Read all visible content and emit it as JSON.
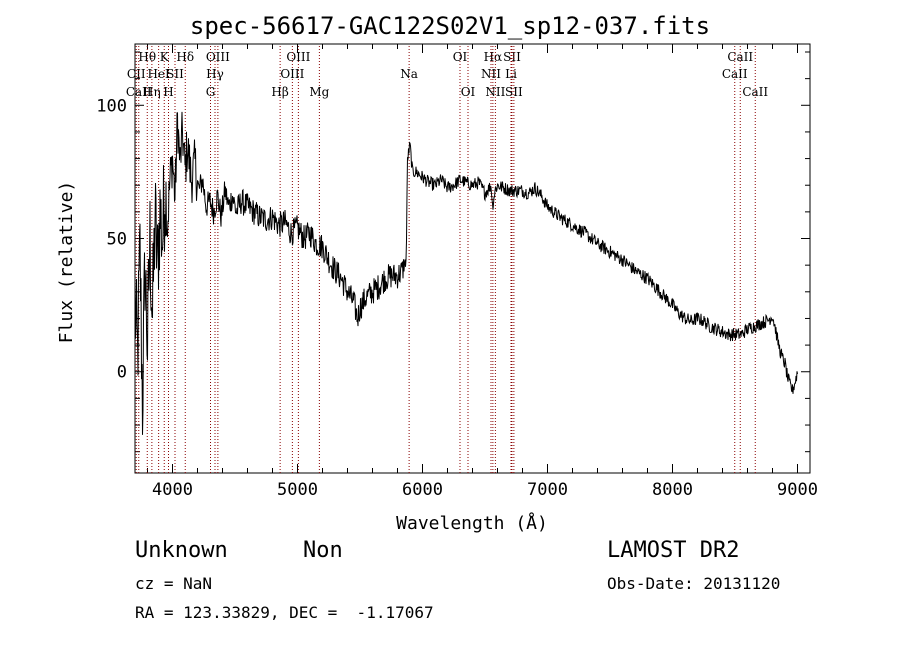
{
  "chart_data": {
    "type": "line",
    "title": "spec-56617-GAC122S02V1_sp12-037.fits",
    "xlabel": "Wavelength (Å)",
    "ylabel": "Flux (relative)",
    "xlim": [
      3700,
      9100
    ],
    "ylim": [
      -38,
      123
    ],
    "xticks": [
      4000,
      5000,
      6000,
      7000,
      8000,
      9000
    ],
    "yticks": [
      0,
      50,
      100
    ],
    "grid": false,
    "line_color": "#000000",
    "marker_color": "#8b0000",
    "series": [
      {
        "x": [
          3700,
          3720,
          3740,
          3760,
          3780,
          3800,
          3820,
          3840,
          3860,
          3880,
          3900,
          3920,
          3940,
          3960,
          3980,
          4000,
          4020,
          4040,
          4060,
          4080,
          4100,
          4120,
          4150,
          4180,
          4210,
          4240,
          4270,
          4300,
          4330,
          4360,
          4390,
          4420,
          4450,
          4480,
          4510,
          4550,
          4600,
          4650,
          4700,
          4750,
          4800,
          4850,
          4900,
          4950,
          5000,
          5050,
          5100,
          5150,
          5200,
          5250,
          5300,
          5350,
          5400,
          5450,
          5480,
          5500,
          5550,
          5600,
          5650,
          5700,
          5750,
          5800,
          5840,
          5870,
          5880,
          5900,
          5920,
          5950,
          6000,
          6050,
          6100,
          6150,
          6200,
          6250,
          6300,
          6350,
          6400,
          6450,
          6500,
          6550,
          6560,
          6580,
          6600,
          6650,
          6700,
          6750,
          6800,
          6850,
          6900,
          6950,
          7000,
          7100,
          7200,
          7300,
          7400,
          7500,
          7600,
          7700,
          7800,
          7900,
          8000,
          8050,
          8100,
          8150,
          8200,
          8250,
          8300,
          8350,
          8400,
          8450,
          8500,
          8550,
          8600,
          8650,
          8700,
          8750,
          8780,
          8800,
          8820,
          8840,
          8860,
          8880,
          8900,
          8920,
          8940,
          8960,
          8980,
          9000
        ],
        "y": [
          25,
          5,
          45,
          -12,
          40,
          10,
          50,
          20,
          58,
          40,
          60,
          50,
          70,
          55,
          72,
          80,
          65,
          95,
          78,
          90,
          76,
          85,
          72,
          78,
          68,
          72,
          62,
          64,
          60,
          66,
          58,
          68,
          62,
          66,
          60,
          64,
          62,
          60,
          58,
          57,
          58,
          55,
          56,
          52,
          54,
          50,
          52,
          48,
          47,
          42,
          38,
          35,
          30,
          26,
          20,
          24,
          28,
          30,
          32,
          35,
          36,
          36,
          38,
          42,
          80,
          85,
          75,
          75,
          73,
          71,
          70,
          72,
          69,
          70,
          72,
          71,
          70,
          71,
          67,
          70,
          62,
          68,
          70,
          69,
          68,
          68,
          68,
          67,
          69,
          66,
          62,
          58,
          55,
          52,
          48,
          45,
          42,
          38,
          35,
          30,
          25,
          22,
          20,
          19,
          20,
          19,
          17,
          16,
          15,
          14,
          14,
          14,
          16,
          17,
          18,
          19,
          20,
          21,
          17,
          12,
          8,
          5,
          3,
          -2,
          -5,
          -7,
          -4,
          0
        ]
      }
    ],
    "lines": [
      {
        "label": "Hθ",
        "x": 3798,
        "row": 0
      },
      {
        "label": "CII",
        "x": 3710,
        "row": 1
      },
      {
        "label": "CaII",
        "x": 3730,
        "row": 2
      },
      {
        "label": "Hη",
        "x": 3835,
        "row": 2
      },
      {
        "label": "HeI",
        "x": 3889,
        "row": 1
      },
      {
        "label": "K",
        "x": 3934,
        "row": 0
      },
      {
        "label": "H",
        "x": 3968,
        "row": 2
      },
      {
        "label": "SII",
        "x": 4020,
        "row": 1
      },
      {
        "label": "Hδ",
        "x": 4102,
        "row": 0
      },
      {
        "label": "OIII",
        "x": 4363,
        "row": 0
      },
      {
        "label": "Hγ",
        "x": 4340,
        "row": 1
      },
      {
        "label": "G",
        "x": 4304,
        "row": 2
      },
      {
        "label": "Hβ",
        "x": 4861,
        "row": 2
      },
      {
        "label": "OIII",
        "x": 5007,
        "row": 0
      },
      {
        "label": "OIII",
        "x": 4959,
        "row": 1
      },
      {
        "label": "Mg",
        "x": 5175,
        "row": 2
      },
      {
        "label": "Na",
        "x": 5893,
        "row": 1
      },
      {
        "label": "OI",
        "x": 6300,
        "row": 0
      },
      {
        "label": "OI",
        "x": 6364,
        "row": 2
      },
      {
        "label": "Hα",
        "x": 6563,
        "row": 0
      },
      {
        "label": "NII",
        "x": 6548,
        "row": 1
      },
      {
        "label": "NII",
        "x": 6583,
        "row": 2
      },
      {
        "label": "SII",
        "x": 6716,
        "row": 0
      },
      {
        "label": "Li",
        "x": 6708,
        "row": 1
      },
      {
        "label": "SII",
        "x": 6731,
        "row": 2
      },
      {
        "label": "CaII",
        "x": 8542,
        "row": 0
      },
      {
        "label": "CaII",
        "x": 8498,
        "row": 1
      },
      {
        "label": "CaII",
        "x": 8662,
        "row": 2
      }
    ]
  },
  "info": {
    "class_label": "Unknown",
    "subclass_label": "Non",
    "survey": "LAMOST DR2",
    "redshift": "cz = NaN",
    "obs_date": "Obs-Date: 20131120",
    "coords": "RA = 123.33829, DEC =  -1.17067"
  }
}
